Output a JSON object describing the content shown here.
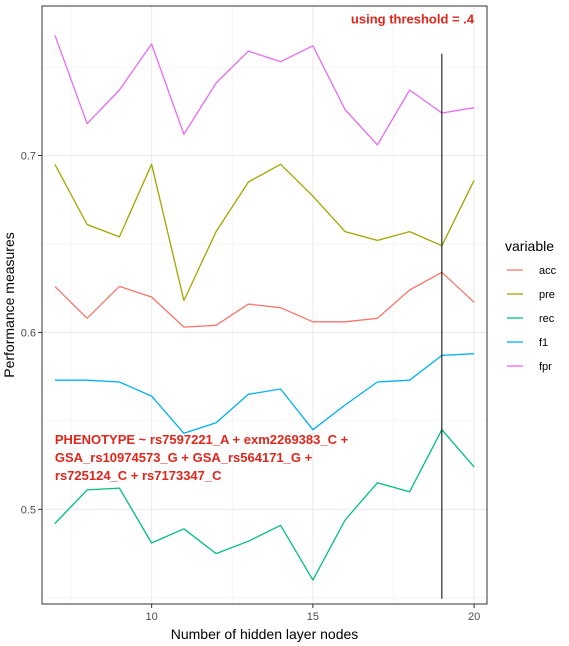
{
  "chart_data": {
    "type": "line",
    "xlabel": "Number of hidden layer nodes",
    "ylabel": "Performance measures",
    "xlim": [
      6.6,
      20.4
    ],
    "ylim": [
      0.4465,
      0.7845
    ],
    "x_ticks": [
      10,
      15,
      20
    ],
    "y_ticks": [
      0.5,
      0.6,
      0.7
    ],
    "x_tick_labels": [
      "10",
      "15",
      "20"
    ],
    "y_tick_labels": [
      "0.5",
      "0.6",
      "0.7"
    ],
    "grid": true,
    "legend_title": "variable",
    "legend_position": "right",
    "x": [
      7,
      8,
      9,
      10,
      11,
      12,
      13,
      14,
      15,
      16,
      17,
      18,
      19,
      20
    ],
    "series": [
      {
        "name": "acc",
        "color": "#F8766D",
        "values": [
          0.626,
          0.608,
          0.626,
          0.62,
          0.603,
          0.604,
          0.616,
          0.614,
          0.606,
          0.606,
          0.608,
          0.624,
          0.634,
          0.617
        ]
      },
      {
        "name": "pre",
        "color": "#A3A500",
        "values": [
          0.695,
          0.661,
          0.654,
          0.695,
          0.618,
          0.657,
          0.685,
          0.695,
          0.677,
          0.657,
          0.652,
          0.657,
          0.649,
          0.686
        ]
      },
      {
        "name": "rec",
        "color": "#00BF7D",
        "values": [
          0.492,
          0.511,
          0.512,
          0.481,
          0.489,
          0.475,
          0.482,
          0.491,
          0.46,
          0.494,
          0.515,
          0.51,
          0.545,
          0.524
        ]
      },
      {
        "name": "f1",
        "color": "#00B0F6",
        "values": [
          0.573,
          0.573,
          0.572,
          0.564,
          0.543,
          0.549,
          0.565,
          0.568,
          0.545,
          0.559,
          0.572,
          0.573,
          0.587,
          0.588
        ]
      },
      {
        "name": "fpr",
        "color": "#E76BF3",
        "values": [
          0.768,
          0.718,
          0.737,
          0.763,
          0.712,
          0.741,
          0.759,
          0.753,
          0.762,
          0.726,
          0.706,
          0.737,
          0.724,
          0.727
        ]
      }
    ],
    "vline": {
      "x": 19,
      "y_from": 0.4495,
      "y_to": 0.7575,
      "color": "#000000"
    },
    "annotations": [
      {
        "text": "using threshold = .4",
        "color": "#e1261c",
        "x": 20,
        "y": 0.7745,
        "anchor": "end"
      },
      {
        "lines": [
          "PHENOTYPE ~ rs7597221_A + exm2269383_C +",
          "GSA_rs10974573_G + GSA_rs564171_G +",
          "rs725124_C + rs7173347_C"
        ],
        "color": "#e1261c",
        "x": 7,
        "y": 0.537,
        "anchor": "start"
      }
    ]
  }
}
